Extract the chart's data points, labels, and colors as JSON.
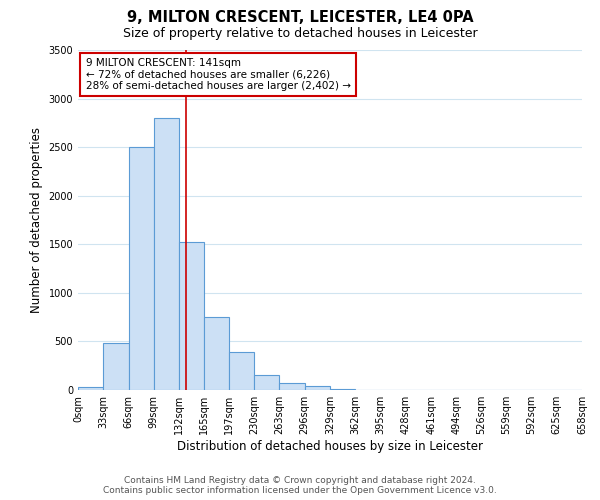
{
  "title": "9, MILTON CRESCENT, LEICESTER, LE4 0PA",
  "subtitle": "Size of property relative to detached houses in Leicester",
  "bar_heights": [
    30,
    480,
    2500,
    2800,
    1520,
    750,
    390,
    150,
    70,
    40,
    10,
    0,
    0,
    0,
    0,
    0,
    0,
    0,
    0,
    0
  ],
  "bin_edges": [
    0,
    33,
    66,
    99,
    132,
    165,
    197,
    230,
    263,
    296,
    329,
    362,
    395,
    428,
    461,
    494,
    526,
    559,
    592,
    625,
    658
  ],
  "bin_labels": [
    "0sqm",
    "33sqm",
    "66sqm",
    "99sqm",
    "132sqm",
    "165sqm",
    "197sqm",
    "230sqm",
    "263sqm",
    "296sqm",
    "329sqm",
    "362sqm",
    "395sqm",
    "428sqm",
    "461sqm",
    "494sqm",
    "526sqm",
    "559sqm",
    "592sqm",
    "625sqm",
    "658sqm"
  ],
  "bar_color": "#cce0f5",
  "bar_edgecolor": "#5b9bd5",
  "bar_linewidth": 0.8,
  "ylim": [
    0,
    3500
  ],
  "yticks": [
    0,
    500,
    1000,
    1500,
    2000,
    2500,
    3000,
    3500
  ],
  "ylabel": "Number of detached properties",
  "xlabel": "Distribution of detached houses by size in Leicester",
  "property_line_x": 141,
  "property_line_color": "#cc0000",
  "annotation_title": "9 MILTON CRESCENT: 141sqm",
  "annotation_line1": "← 72% of detached houses are smaller (6,226)",
  "annotation_line2": "28% of semi-detached houses are larger (2,402) →",
  "annotation_box_color": "#ffffff",
  "annotation_box_edgecolor": "#cc0000",
  "footer_line1": "Contains HM Land Registry data © Crown copyright and database right 2024.",
  "footer_line2": "Contains public sector information licensed under the Open Government Licence v3.0.",
  "background_color": "#ffffff",
  "grid_color": "#d0e4f0",
  "title_fontsize": 10.5,
  "subtitle_fontsize": 9,
  "label_fontsize": 8.5,
  "tick_fontsize": 7,
  "annotation_fontsize": 7.5,
  "footer_fontsize": 6.5
}
